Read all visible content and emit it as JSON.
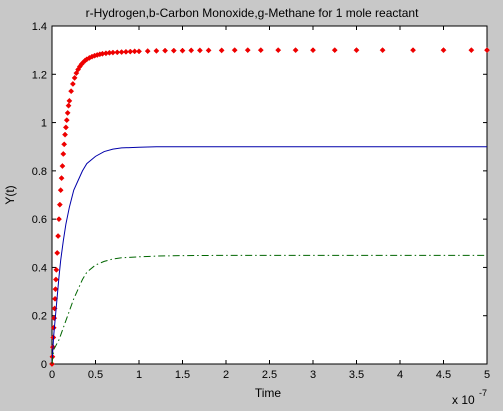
{
  "chart_data": {
    "type": "line",
    "title": "r-Hydrogen,b-Carbon Monoxide,g-Methane for 1 mole reactant",
    "xlabel": "Time",
    "ylabel": "Y(t)",
    "x_multiplier_label": "x 10",
    "x_multiplier_exponent": "-7",
    "xlim": [
      0,
      5
    ],
    "ylim": [
      0,
      1.4
    ],
    "xticks": [
      "0",
      "0.5",
      "1",
      "1.5",
      "2",
      "2.5",
      "3",
      "3.5",
      "4",
      "4.5",
      "5"
    ],
    "yticks": [
      "0",
      "0.2",
      "0.4",
      "0.6",
      "0.8",
      "1",
      "1.2",
      "1.4"
    ],
    "grid": false,
    "legend": "none",
    "series": [
      {
        "color": "#ee0000",
        "style": "diamond markers",
        "x": [
          0,
          0.005,
          0.01,
          0.015,
          0.02,
          0.025,
          0.03,
          0.035,
          0.04,
          0.045,
          0.05,
          0.06,
          0.07,
          0.08,
          0.09,
          0.1,
          0.11,
          0.12,
          0.13,
          0.14,
          0.15,
          0.16,
          0.17,
          0.18,
          0.19,
          0.2,
          0.22,
          0.24,
          0.26,
          0.28,
          0.3,
          0.32,
          0.34,
          0.36,
          0.38,
          0.4,
          0.43,
          0.46,
          0.49,
          0.52,
          0.55,
          0.58,
          0.62,
          0.66,
          0.7,
          0.75,
          0.8,
          0.85,
          0.9,
          0.95,
          1.0,
          1.1,
          1.2,
          1.3,
          1.4,
          1.5,
          1.6,
          1.7,
          1.8,
          1.95,
          2.1,
          2.25,
          2.4,
          2.6,
          2.8,
          3.0,
          3.25,
          3.5,
          3.8,
          4.15,
          4.5,
          4.82,
          5.0
        ],
        "y": [
          0,
          0.03,
          0.07,
          0.11,
          0.15,
          0.19,
          0.23,
          0.27,
          0.31,
          0.35,
          0.39,
          0.46,
          0.53,
          0.6,
          0.66,
          0.72,
          0.77,
          0.82,
          0.87,
          0.91,
          0.95,
          0.98,
          1.01,
          1.04,
          1.07,
          1.09,
          1.13,
          1.16,
          1.185,
          1.205,
          1.22,
          1.232,
          1.242,
          1.25,
          1.257,
          1.262,
          1.268,
          1.273,
          1.277,
          1.28,
          1.283,
          1.285,
          1.287,
          1.289,
          1.29,
          1.291,
          1.292,
          1.293,
          1.294,
          1.295,
          1.295,
          1.296,
          1.297,
          1.298,
          1.298,
          1.298,
          1.299,
          1.299,
          1.299,
          1.299,
          1.3,
          1.3,
          1.3,
          1.3,
          1.3,
          1.3,
          1.3,
          1.3,
          1.3,
          1.3,
          1.3,
          1.3,
          1.3
        ]
      },
      {
        "color": "#0000aa",
        "style": "solid",
        "x": [
          0,
          0.02,
          0.04,
          0.06,
          0.08,
          0.1,
          0.13,
          0.16,
          0.2,
          0.25,
          0.3,
          0.35,
          0.4,
          0.5,
          0.6,
          0.7,
          0.8,
          1.0,
          1.2,
          1.5,
          2.0,
          3.0,
          4.0,
          5.0
        ],
        "y": [
          0,
          0.12,
          0.2,
          0.28,
          0.36,
          0.43,
          0.51,
          0.58,
          0.65,
          0.72,
          0.76,
          0.8,
          0.83,
          0.86,
          0.88,
          0.89,
          0.895,
          0.898,
          0.9,
          0.9,
          0.9,
          0.9,
          0.9,
          0.9
        ]
      },
      {
        "color": "#006600",
        "style": "dash-dot",
        "x": [
          0,
          0.02,
          0.05,
          0.08,
          0.1,
          0.15,
          0.2,
          0.25,
          0.3,
          0.35,
          0.4,
          0.5,
          0.6,
          0.7,
          0.8,
          1.0,
          1.2,
          1.5,
          2.0,
          3.0,
          4.0,
          5.0
        ],
        "y": [
          0,
          0.06,
          0.08,
          0.1,
          0.12,
          0.17,
          0.22,
          0.27,
          0.31,
          0.35,
          0.38,
          0.41,
          0.425,
          0.435,
          0.44,
          0.444,
          0.447,
          0.449,
          0.45,
          0.45,
          0.45,
          0.45
        ]
      }
    ]
  }
}
